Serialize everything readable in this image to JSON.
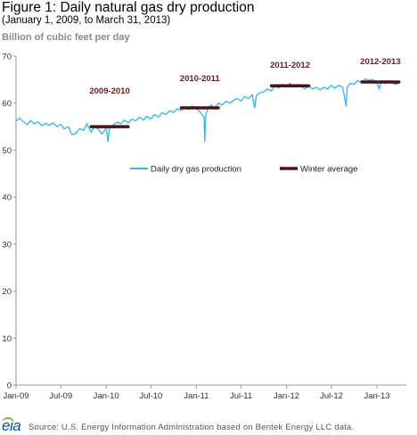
{
  "header": {
    "title": "Figure 1: Daily natural gas dry production",
    "subtitle": "(January 1, 2009, to March 31, 2013)",
    "units": "Billion of cubic feet per day"
  },
  "footer": {
    "logo_text": "eia",
    "source": "Source:  U.S. Energy Information Administration based on Bentek Energy LLC data."
  },
  "colors": {
    "production": "#33b5e8",
    "winter_average": "#4a1414",
    "winter_label": "#6b1c1c",
    "axis": "#999999"
  },
  "chart_data": {
    "type": "line",
    "title": "Figure 1: Daily natural gas dry production",
    "ylabel": "Billion of cubic feet per day",
    "ylim": [
      0,
      70
    ],
    "yticks": [
      0,
      10,
      20,
      30,
      40,
      50,
      60,
      70
    ],
    "xlim": [
      "2009-01-01",
      "2013-04-30"
    ],
    "xticks": [
      {
        "date": "2009-01-01",
        "label": "Jan-09"
      },
      {
        "date": "2009-07-01",
        "label": "Jul-09"
      },
      {
        "date": "2010-01-01",
        "label": "Jan-10"
      },
      {
        "date": "2010-07-01",
        "label": "Jul-10"
      },
      {
        "date": "2011-01-01",
        "label": "Jan-11"
      },
      {
        "date": "2011-07-01",
        "label": "Jul-11"
      },
      {
        "date": "2012-01-01",
        "label": "Jan-12"
      },
      {
        "date": "2012-07-01",
        "label": "Jul-12"
      },
      {
        "date": "2013-01-01",
        "label": "Jan-13"
      }
    ],
    "legend": {
      "placement": "top",
      "entries": [
        "Daily dry gas production",
        "Winter average"
      ]
    },
    "series": [
      {
        "name": "Daily dry gas production",
        "kind": "line",
        "points": [
          [
            "2009-01-01",
            56.2
          ],
          [
            "2009-01-15",
            56.8
          ],
          [
            "2009-02-01",
            56.0
          ],
          [
            "2009-02-15",
            55.4
          ],
          [
            "2009-03-01",
            56.3
          ],
          [
            "2009-03-15",
            55.6
          ],
          [
            "2009-04-01",
            56.0
          ],
          [
            "2009-04-15",
            55.2
          ],
          [
            "2009-05-01",
            55.7
          ],
          [
            "2009-05-15",
            55.3
          ],
          [
            "2009-06-01",
            55.8
          ],
          [
            "2009-06-15",
            55.0
          ],
          [
            "2009-07-01",
            55.5
          ],
          [
            "2009-07-15",
            54.5
          ],
          [
            "2009-08-01",
            55.0
          ],
          [
            "2009-08-15",
            53.3
          ],
          [
            "2009-09-01",
            53.6
          ],
          [
            "2009-09-15",
            54.6
          ],
          [
            "2009-10-01",
            54.2
          ],
          [
            "2009-10-15",
            55.6
          ],
          [
            "2009-11-01",
            53.8
          ],
          [
            "2009-11-15",
            55.0
          ],
          [
            "2009-12-01",
            54.4
          ],
          [
            "2009-12-15",
            53.4
          ],
          [
            "2010-01-01",
            54.8
          ],
          [
            "2010-01-08",
            51.8
          ],
          [
            "2010-01-15",
            55.0
          ],
          [
            "2010-02-01",
            55.4
          ],
          [
            "2010-02-15",
            56.0
          ],
          [
            "2010-03-01",
            55.6
          ],
          [
            "2010-03-15",
            56.4
          ],
          [
            "2010-04-01",
            55.8
          ],
          [
            "2010-04-15",
            56.6
          ],
          [
            "2010-05-01",
            56.2
          ],
          [
            "2010-05-15",
            57.0
          ],
          [
            "2010-06-01",
            56.4
          ],
          [
            "2010-06-15",
            57.2
          ],
          [
            "2010-07-01",
            56.6
          ],
          [
            "2010-07-15",
            57.6
          ],
          [
            "2010-08-01",
            57.0
          ],
          [
            "2010-08-15",
            58.0
          ],
          [
            "2010-09-01",
            57.6
          ],
          [
            "2010-09-15",
            58.4
          ],
          [
            "2010-10-01",
            58.0
          ],
          [
            "2010-10-15",
            58.8
          ],
          [
            "2010-11-01",
            58.4
          ],
          [
            "2010-11-15",
            59.2
          ],
          [
            "2010-12-01",
            58.6
          ],
          [
            "2010-12-15",
            59.4
          ],
          [
            "2011-01-01",
            58.8
          ],
          [
            "2011-01-15",
            58.2
          ],
          [
            "2011-02-01",
            57.0
          ],
          [
            "2011-02-04",
            51.8
          ],
          [
            "2011-02-08",
            57.4
          ],
          [
            "2011-02-15",
            58.6
          ],
          [
            "2011-03-01",
            59.6
          ],
          [
            "2011-03-15",
            59.0
          ],
          [
            "2011-04-01",
            60.0
          ],
          [
            "2011-04-15",
            59.6
          ],
          [
            "2011-05-01",
            60.4
          ],
          [
            "2011-05-15",
            60.0
          ],
          [
            "2011-06-01",
            60.6
          ],
          [
            "2011-06-15",
            61.0
          ],
          [
            "2011-07-01",
            60.4
          ],
          [
            "2011-07-15",
            61.4
          ],
          [
            "2011-08-01",
            61.0
          ],
          [
            "2011-08-15",
            61.8
          ],
          [
            "2011-08-25",
            59.0
          ],
          [
            "2011-09-01",
            61.6
          ],
          [
            "2011-09-15",
            62.2
          ],
          [
            "2011-10-01",
            62.4
          ],
          [
            "2011-10-15",
            63.0
          ],
          [
            "2011-11-01",
            62.6
          ],
          [
            "2011-11-15",
            63.6
          ],
          [
            "2011-12-01",
            63.2
          ],
          [
            "2011-12-15",
            64.0
          ],
          [
            "2012-01-01",
            63.6
          ],
          [
            "2012-01-15",
            64.2
          ],
          [
            "2012-02-01",
            63.4
          ],
          [
            "2012-02-15",
            64.0
          ],
          [
            "2012-03-01",
            63.6
          ],
          [
            "2012-03-15",
            63.0
          ],
          [
            "2012-04-01",
            63.6
          ],
          [
            "2012-04-15",
            63.0
          ],
          [
            "2012-05-01",
            63.4
          ],
          [
            "2012-05-15",
            62.8
          ],
          [
            "2012-06-01",
            63.4
          ],
          [
            "2012-06-15",
            63.0
          ],
          [
            "2012-07-01",
            63.8
          ],
          [
            "2012-07-15",
            63.2
          ],
          [
            "2012-08-01",
            63.8
          ],
          [
            "2012-08-15",
            63.4
          ],
          [
            "2012-08-29",
            59.4
          ],
          [
            "2012-09-03",
            63.4
          ],
          [
            "2012-09-15",
            64.2
          ],
          [
            "2012-10-01",
            64.0
          ],
          [
            "2012-10-15",
            64.8
          ],
          [
            "2012-11-01",
            64.4
          ],
          [
            "2012-11-15",
            65.2
          ],
          [
            "2012-12-01",
            64.8
          ],
          [
            "2012-12-15",
            65.0
          ],
          [
            "2013-01-01",
            64.4
          ],
          [
            "2013-01-10",
            63.0
          ],
          [
            "2013-01-20",
            64.8
          ],
          [
            "2013-02-01",
            64.2
          ],
          [
            "2013-02-15",
            64.8
          ],
          [
            "2013-03-01",
            64.4
          ],
          [
            "2013-03-15",
            64.0
          ],
          [
            "2013-03-31",
            64.2
          ]
        ]
      },
      {
        "name": "Winter average",
        "kind": "segments",
        "segments": [
          {
            "label": "2009-2010",
            "start": "2009-11-01",
            "end": "2010-03-31",
            "value": 55.0
          },
          {
            "label": "2010-2011",
            "start": "2010-11-01",
            "end": "2011-03-31",
            "value": 59.0
          },
          {
            "label": "2011-2012",
            "start": "2011-11-01",
            "end": "2012-03-31",
            "value": 63.7
          },
          {
            "label": "2012-2013",
            "start": "2012-11-01",
            "end": "2013-03-31",
            "value": 64.5
          }
        ]
      }
    ]
  }
}
